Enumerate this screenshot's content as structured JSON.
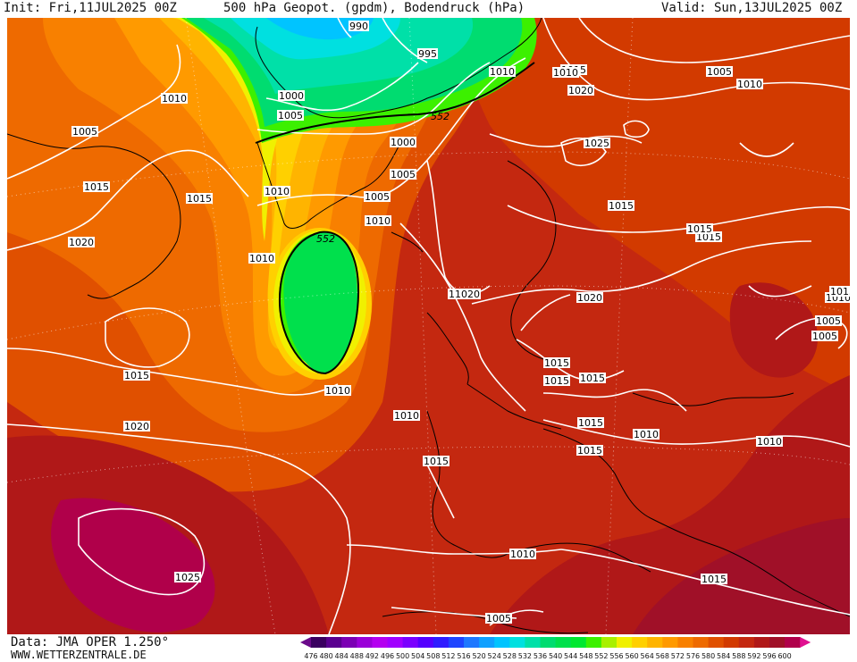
{
  "header": {
    "init": "Init: Fri,11JUL2025 00Z",
    "title": "500 hPa Geopot. (gpdm), Bodendruck (hPa)",
    "valid": "Valid: Sun,13JUL2025 00Z"
  },
  "footer": {
    "data_source": "Data: JMA OPER 1.250°",
    "website": "WWW.WETTERZENTRALE.DE"
  },
  "legend": {
    "values": [
      "476",
      "480",
      "484",
      "488",
      "492",
      "496",
      "500",
      "504",
      "508",
      "512",
      "516",
      "520",
      "524",
      "528",
      "532",
      "536",
      "540",
      "544",
      "548",
      "552",
      "556",
      "560",
      "564",
      "568",
      "572",
      "576",
      "580",
      "584",
      "588",
      "592",
      "596",
      "600"
    ],
    "colors": [
      "#3a0060",
      "#5a0090",
      "#7b00b4",
      "#9a00d8",
      "#b400f0",
      "#a000ff",
      "#7a00ff",
      "#5500ff",
      "#2f1cff",
      "#1f45ff",
      "#1f78ff",
      "#10a0ff",
      "#00c4ff",
      "#00e0e0",
      "#00e0a8",
      "#00dc70",
      "#00e04c",
      "#00e830",
      "#3cf000",
      "#a8f000",
      "#f0f000",
      "#ffd000",
      "#ffb400",
      "#ff9a00",
      "#f88000",
      "#ee6a00",
      "#e05000",
      "#d23a00",
      "#c42810",
      "#b01818",
      "#a01028",
      "#b0004a"
    ],
    "left_arrow_color": "#6a0a8a",
    "right_arrow_color": "#e01090"
  },
  "isobars": [
    {
      "label": "990"
    },
    {
      "label": "995"
    },
    {
      "label": "1000"
    },
    {
      "label": "1005"
    },
    {
      "label": "1010"
    },
    {
      "label": "1015"
    },
    {
      "label": "1010"
    },
    {
      "label": "1005"
    },
    {
      "label": "1005"
    },
    {
      "label": "1010"
    },
    {
      "label": "1015"
    },
    {
      "label": "1020"
    },
    {
      "label": "1015"
    },
    {
      "label": "1020"
    },
    {
      "label": "1025"
    },
    {
      "label": "1010"
    },
    {
      "label": "1005"
    },
    {
      "label": "1000"
    },
    {
      "label": "1005"
    },
    {
      "label": "1010"
    },
    {
      "label": "1010"
    },
    {
      "label": "1010"
    },
    {
      "label": "1015"
    },
    {
      "label": "1020"
    },
    {
      "label": "1015"
    },
    {
      "label": "1010"
    },
    {
      "label": "1005"
    },
    {
      "label": "1015"
    },
    {
      "label": "1015"
    },
    {
      "label": "1010"
    },
    {
      "label": "1015"
    },
    {
      "label": "1020"
    },
    {
      "label": "1015"
    },
    {
      "label": "1015"
    },
    {
      "label": "1010"
    },
    {
      "label": "1010"
    },
    {
      "label": "1010"
    },
    {
      "label": "1015"
    },
    {
      "label": "1025"
    },
    {
      "label": "1010"
    },
    {
      "label": "1005"
    },
    {
      "label": "1020"
    },
    {
      "label": "1015"
    },
    {
      "label": "1015"
    },
    {
      "label": "1015"
    },
    {
      "label": "1015"
    },
    {
      "label": "1005"
    },
    {
      "label": "1010"
    }
  ],
  "geopotential_labels": [
    {
      "label": "552"
    },
    {
      "label": "552"
    }
  ]
}
